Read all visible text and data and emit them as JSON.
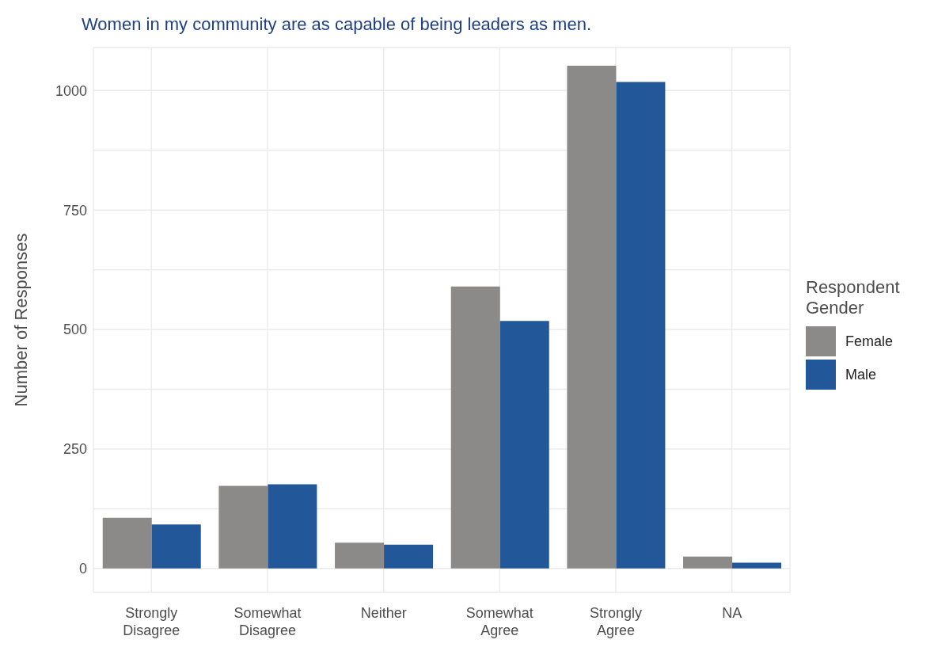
{
  "chart_data": {
    "type": "bar",
    "title": "Women in my community are as capable of being leaders as men.",
    "ylabel": "Number of Responses",
    "legend_title": "Respondent Gender",
    "categories": [
      "Strongly Disagree",
      "Somewhat Disagree",
      "Neither",
      "Somewhat Agree",
      "Strongly Agree",
      "NA"
    ],
    "series": [
      {
        "name": "Female",
        "color": "#8c8a88",
        "values": [
          106,
          173,
          54,
          590,
          1052,
          25
        ]
      },
      {
        "name": "Male",
        "color": "#22579a",
        "values": [
          92,
          176,
          50,
          518,
          1018,
          12
        ]
      }
    ],
    "ylim": [
      -50,
      1090
    ],
    "yticks": [
      0,
      {
        "value": 125,
        "label": null
      },
      250,
      {
        "value": 375,
        "label": null
      },
      500,
      {
        "value": 625,
        "label": null
      },
      750,
      {
        "value": 875,
        "label": null
      },
      1000
    ],
    "grid": true,
    "legend": "right"
  }
}
